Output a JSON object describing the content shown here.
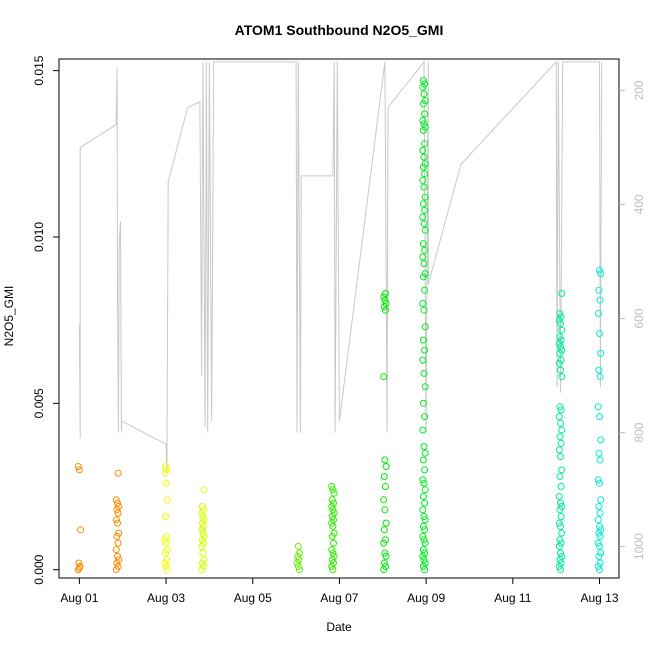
{
  "chart_data": {
    "type": "scatter",
    "title": "ATOM1 Southbound N2O5_GMI",
    "xlabel": "Date",
    "ylabel": "N2O5_GMI",
    "x_ticks": [
      "Aug 01",
      "Aug 03",
      "Aug 05",
      "Aug 07",
      "Aug 09",
      "Aug 11",
      "Aug 13"
    ],
    "x_tick_days": [
      1,
      3,
      5,
      7,
      9,
      11,
      13
    ],
    "xlim_days": [
      0.53,
      13.45
    ],
    "y_ticks": [
      "0.000",
      "0.005",
      "0.010",
      "0.015"
    ],
    "y_tick_values": [
      0.0,
      0.005,
      0.01,
      0.015
    ],
    "ylim": [
      -0.00025,
      0.01535
    ],
    "right_axis": {
      "ticks": [
        "200",
        "400",
        "600",
        "800",
        "1000"
      ],
      "tick_values": [
        200,
        400,
        600,
        800,
        1000
      ],
      "range": [
        1055,
        145
      ],
      "color": "#bdbdbd"
    },
    "grid": false,
    "point_colors": [
      "#ff8c00",
      "#ffb400",
      "#f0ff00",
      "#d8ff00",
      "#66ee00",
      "#33ee00",
      "#00ee00",
      "#00ee22",
      "#00ee99",
      "#00eecc"
    ],
    "series": [
      {
        "x": 1.0,
        "color": "#ff8c00",
        "y": [
          0.0031,
          0.003,
          0.0012,
          0.0002,
          0.0001,
          0.0,
          5e-05
        ]
      },
      {
        "x": 1.88,
        "color": "#ff8c00",
        "y": [
          0.0029,
          0.0021,
          0.002,
          0.0019,
          0.0018,
          0.0017,
          0.0015,
          0.0014,
          0.0011,
          0.001,
          0.0008,
          0.0006,
          0.0004,
          0.0003,
          0.0002,
          0.0001,
          0.0
        ]
      },
      {
        "x": 3.0,
        "color": "#f0ff00",
        "y": [
          0.0031,
          0.003,
          0.0029,
          0.0026,
          0.0021,
          0.0016,
          0.001,
          0.0009,
          0.0008,
          0.0006,
          0.0005,
          0.0003,
          0.0002,
          0.0001,
          0.0
        ]
      },
      {
        "x": 3.85,
        "color": "#d8ff00",
        "y": [
          0.0024,
          0.0019,
          0.0018,
          0.0017,
          0.0016,
          0.0015,
          0.0014,
          0.0013,
          0.0012,
          0.0011,
          0.001,
          0.0009,
          0.0008,
          0.0007,
          0.0005,
          0.0003,
          0.0002,
          0.0001,
          0.0
        ]
      },
      {
        "x": 6.05,
        "color": "#66ee00",
        "y": [
          0.0007,
          0.0005,
          0.0004,
          0.0003,
          0.0002,
          0.0001,
          0.0
        ]
      },
      {
        "x": 6.85,
        "color": "#33ee00",
        "y": [
          0.0025,
          0.0024,
          0.0023,
          0.0021,
          0.002,
          0.0019,
          0.0018,
          0.0017,
          0.0016,
          0.0015,
          0.0014,
          0.0013,
          0.0011,
          0.001,
          0.0008,
          0.0006,
          0.0005,
          0.0004,
          0.0003,
          0.0002,
          0.0001,
          0.0
        ]
      },
      {
        "x": 8.05,
        "color": "#00ee00",
        "y": [
          0.0083,
          0.0082,
          0.0081,
          0.008,
          0.0079,
          0.0078,
          0.0058,
          0.0033,
          0.0031,
          0.0028,
          0.0025,
          0.0021,
          0.0018,
          0.0014,
          0.0012,
          0.0009,
          0.0008,
          0.0005,
          0.0004,
          0.0002,
          0.0001,
          0.0
        ]
      },
      {
        "x": 8.95,
        "color": "#00ee22",
        "y": [
          0.0147,
          0.0146,
          0.0145,
          0.0143,
          0.0141,
          0.014,
          0.0137,
          0.0135,
          0.0134,
          0.0133,
          0.0132,
          0.0128,
          0.0126,
          0.0124,
          0.0122,
          0.0121,
          0.0119,
          0.0117,
          0.0115,
          0.0112,
          0.011,
          0.0108,
          0.0106,
          0.0104,
          0.0102,
          0.0098,
          0.0096,
          0.0094,
          0.0092,
          0.0089,
          0.0088,
          0.0084,
          0.008,
          0.0078,
          0.0073,
          0.0069,
          0.0066,
          0.0063,
          0.0059,
          0.0055,
          0.005,
          0.0046,
          0.0042,
          0.0037,
          0.0035,
          0.0033,
          0.003,
          0.0027,
          0.0026,
          0.0024,
          0.0022,
          0.002,
          0.0018,
          0.0016,
          0.0015,
          0.0013,
          0.0012,
          0.001,
          0.0009,
          0.0008,
          0.0006,
          0.0005,
          0.0004,
          0.0003,
          0.0002,
          0.0001,
          0.0
        ]
      },
      {
        "x": 12.1,
        "color": "#00ee99",
        "y": [
          0.0083,
          0.0077,
          0.0076,
          0.0075,
          0.0074,
          0.0072,
          0.007,
          0.0069,
          0.0068,
          0.0067,
          0.0066,
          0.0065,
          0.0063,
          0.0062,
          0.006,
          0.0058,
          0.0049,
          0.0048,
          0.0046,
          0.0044,
          0.0042,
          0.004,
          0.0038,
          0.0036,
          0.0034,
          0.003,
          0.0028,
          0.0025,
          0.0022,
          0.002,
          0.0019,
          0.0018,
          0.0016,
          0.0014,
          0.0013,
          0.0011,
          0.0009,
          0.0008,
          0.0007,
          0.0005,
          0.0004,
          0.0003,
          0.0002,
          0.0001,
          0.0
        ]
      },
      {
        "x": 13.0,
        "color": "#00eecc",
        "y": [
          0.009,
          0.0089,
          0.0084,
          0.0081,
          0.0077,
          0.0071,
          0.0065,
          0.006,
          0.0058,
          0.0049,
          0.0046,
          0.0039,
          0.0035,
          0.0033,
          0.0027,
          0.0026,
          0.0021,
          0.0019,
          0.0017,
          0.0015,
          0.0013,
          0.0012,
          0.0011,
          0.001,
          0.0008,
          0.0007,
          0.0005,
          0.0004,
          0.0002,
          0.0001,
          0.0
        ]
      }
    ],
    "pressure_trace": {
      "color": "#c8c8c8",
      "points": [
        [
          1.0,
          610
        ],
        [
          1.02,
          810
        ],
        [
          1.02,
          300
        ],
        [
          1.85,
          260
        ],
        [
          1.87,
          160
        ],
        [
          1.88,
          560
        ],
        [
          1.9,
          800
        ],
        [
          1.92,
          470
        ],
        [
          1.95,
          430
        ],
        [
          1.97,
          800
        ],
        [
          1.98,
          780
        ],
        [
          3.0,
          820
        ],
        [
          3.02,
          870
        ],
        [
          3.05,
          360
        ],
        [
          3.5,
          230
        ],
        [
          3.78,
          220
        ],
        [
          3.82,
          700
        ],
        [
          3.85,
          150
        ],
        [
          3.9,
          790
        ],
        [
          3.93,
          150
        ],
        [
          3.96,
          800
        ],
        [
          4.0,
          150
        ],
        [
          4.05,
          780
        ],
        [
          4.1,
          150
        ],
        [
          5.3,
          150
        ],
        [
          6.0,
          150
        ],
        [
          6.02,
          800
        ],
        [
          6.05,
          150
        ],
        [
          6.1,
          800
        ],
        [
          6.12,
          350
        ],
        [
          6.85,
          350
        ],
        [
          6.88,
          150
        ],
        [
          6.9,
          800
        ],
        [
          6.95,
          150
        ],
        [
          7.0,
          780
        ],
        [
          8.05,
          150
        ],
        [
          8.1,
          800
        ],
        [
          8.12,
          230
        ],
        [
          8.95,
          150
        ],
        [
          9.0,
          800
        ],
        [
          9.05,
          150
        ],
        [
          9.05,
          540
        ],
        [
          9.8,
          330
        ],
        [
          12.0,
          150
        ],
        [
          12.02,
          720
        ],
        [
          12.05,
          150
        ],
        [
          12.1,
          730
        ],
        [
          12.15,
          150
        ],
        [
          13.0,
          150
        ],
        [
          13.02,
          720
        ],
        [
          13.05,
          150
        ]
      ]
    }
  }
}
